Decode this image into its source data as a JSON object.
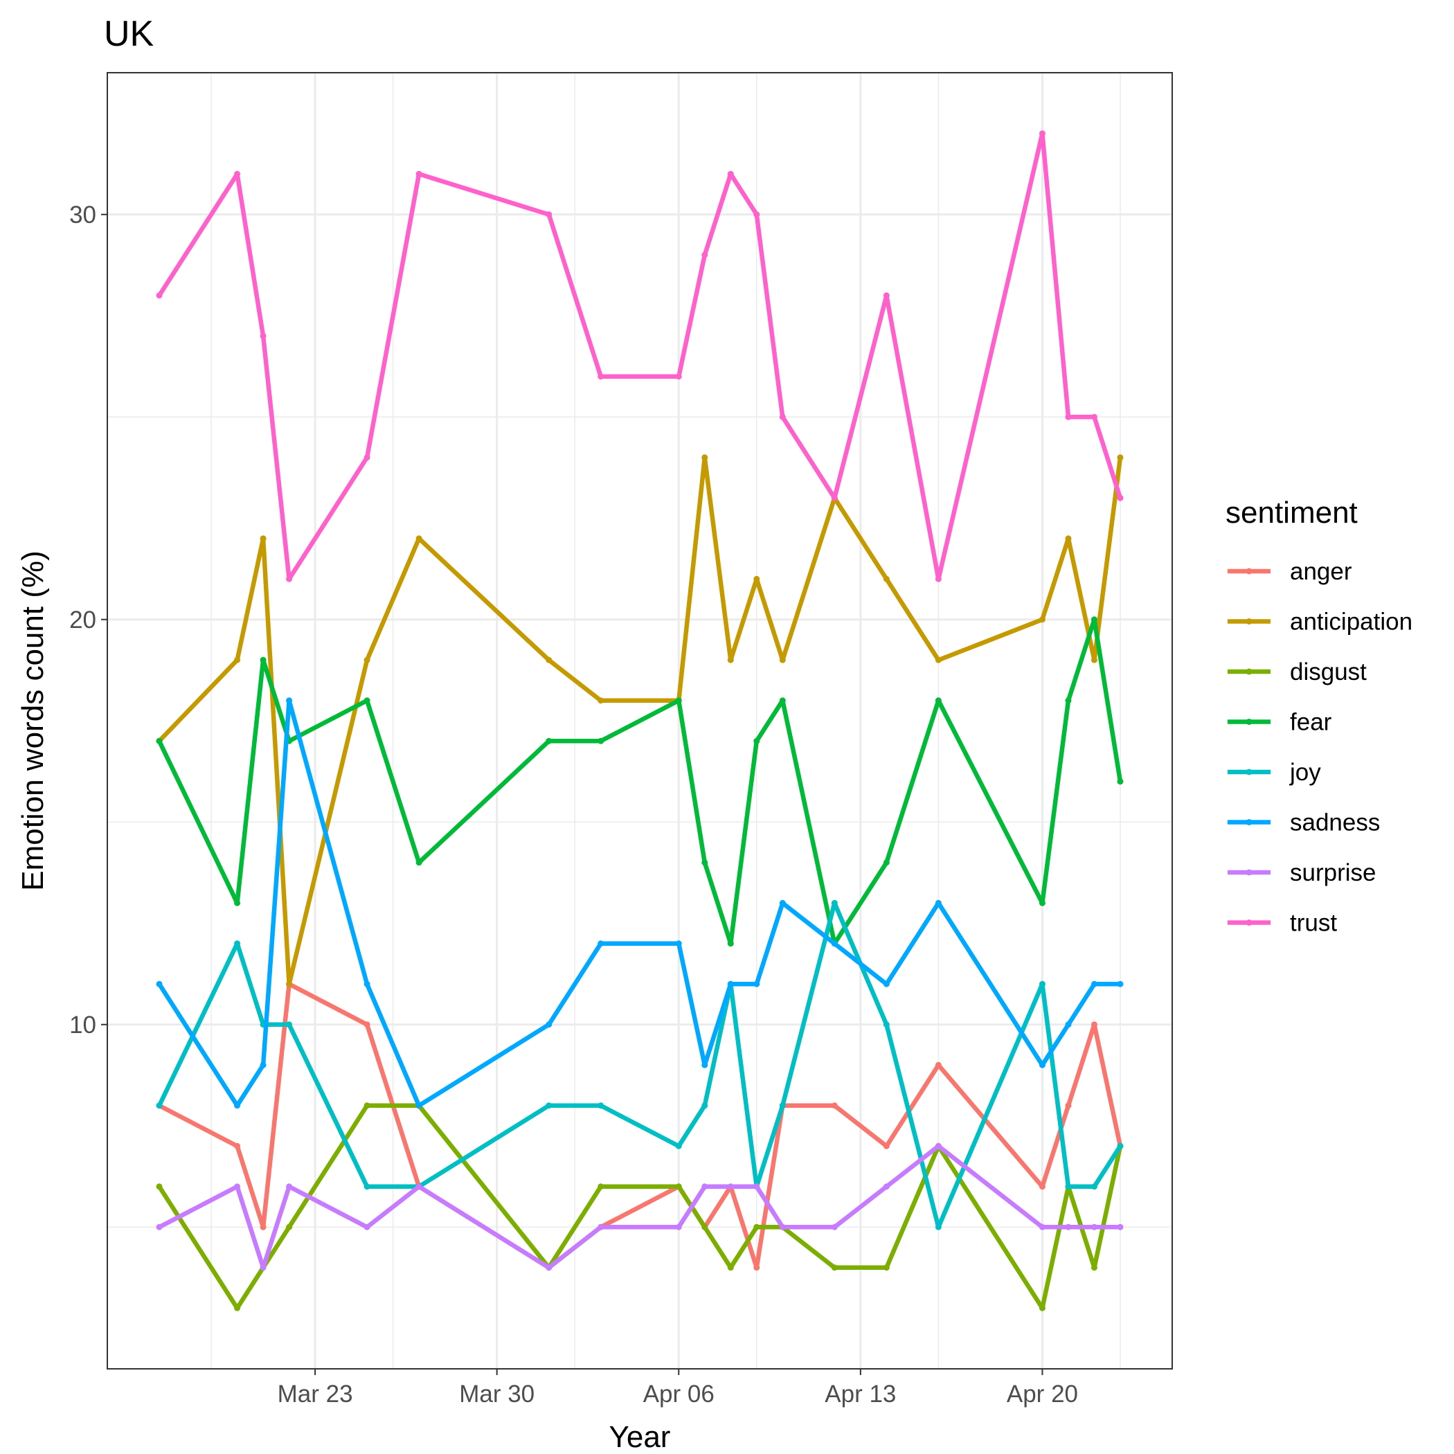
{
  "chart_data": {
    "type": "line",
    "title": "UK",
    "xlabel": "Year",
    "ylabel": "Emotion words count (%)",
    "legend_title": "sentiment",
    "legend_position": "right",
    "grid": true,
    "xlim": [
      "2020-03-15",
      "2020-04-25"
    ],
    "ylim": [
      1.5,
      33.5
    ],
    "x_ticks": [
      {
        "date": "2020-03-23",
        "label": "Mar 23"
      },
      {
        "date": "2020-03-30",
        "label": "Mar 30"
      },
      {
        "date": "2020-04-06",
        "label": "Apr 06"
      },
      {
        "date": "2020-04-13",
        "label": "Apr 13"
      },
      {
        "date": "2020-04-20",
        "label": "Apr 20"
      }
    ],
    "x_minor_ticks": [
      "2020-03-19",
      "2020-03-26",
      "2020-04-02",
      "2020-04-09",
      "2020-04-16",
      "2020-04-23"
    ],
    "y_ticks": [
      10,
      20,
      30
    ],
    "y_minor_ticks": [
      5,
      15,
      25
    ],
    "x": [
      "2020-03-17",
      "2020-03-20",
      "2020-03-21",
      "2020-03-22",
      "2020-03-25",
      "2020-03-27",
      "2020-04-01",
      "2020-04-03",
      "2020-04-06",
      "2020-04-07",
      "2020-04-08",
      "2020-04-09",
      "2020-04-10",
      "2020-04-12",
      "2020-04-14",
      "2020-04-16",
      "2020-04-20",
      "2020-04-21",
      "2020-04-22",
      "2020-04-23"
    ],
    "series": [
      {
        "name": "anger",
        "color": "#F8766D",
        "values": [
          8,
          7,
          5,
          11,
          10,
          6,
          4,
          5,
          6,
          5,
          6,
          4,
          8,
          8,
          7,
          9,
          6,
          8,
          10,
          7
        ]
      },
      {
        "name": "anticipation",
        "color": "#C49A00",
        "values": [
          17,
          19,
          22,
          11,
          19,
          22,
          19,
          18,
          18,
          24,
          19,
          21,
          19,
          23,
          21,
          19,
          20,
          22,
          19,
          24
        ]
      },
      {
        "name": "disgust",
        "color": "#7CAE00",
        "values": [
          6,
          3,
          4,
          5,
          8,
          8,
          4,
          6,
          6,
          5,
          4,
          5,
          5,
          4,
          4,
          7,
          3,
          6,
          4,
          7
        ]
      },
      {
        "name": "fear",
        "color": "#00BA38",
        "values": [
          17,
          13,
          19,
          17,
          18,
          14,
          17,
          17,
          18,
          14,
          12,
          17,
          18,
          12,
          14,
          18,
          13,
          18,
          20,
          16
        ]
      },
      {
        "name": "joy",
        "color": "#00BFC4",
        "values": [
          8,
          12,
          10,
          10,
          6,
          6,
          8,
          8,
          7,
          8,
          11,
          6,
          8,
          13,
          10,
          5,
          11,
          6,
          6,
          7
        ]
      },
      {
        "name": "sadness",
        "color": "#00A9FF",
        "values": [
          11,
          8,
          9,
          18,
          11,
          8,
          10,
          12,
          12,
          9,
          11,
          11,
          13,
          12,
          11,
          13,
          9,
          10,
          11,
          11
        ]
      },
      {
        "name": "surprise",
        "color": "#C77CFF",
        "values": [
          5,
          6,
          4,
          6,
          5,
          6,
          4,
          5,
          5,
          6,
          6,
          6,
          5,
          5,
          6,
          7,
          5,
          5,
          5,
          5
        ]
      },
      {
        "name": "trust",
        "color": "#FF61CC",
        "values": [
          28,
          31,
          27,
          21,
          24,
          31,
          30,
          26,
          26,
          29,
          31,
          30,
          25,
          23,
          28,
          21,
          32,
          25,
          25,
          23
        ]
      }
    ]
  }
}
